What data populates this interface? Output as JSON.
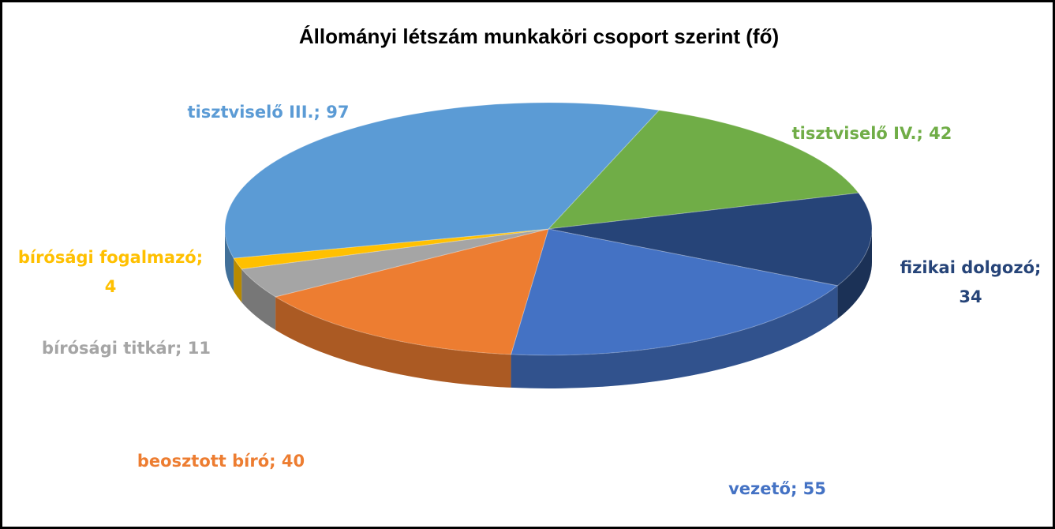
{
  "chart_data": {
    "type": "pie3d",
    "title": "Állományi létszám munkaköri csoport szerint (fő)",
    "categories": [
      "tisztviselő IV.",
      "fizikai dolgozó",
      "vezető",
      "beosztott bíró",
      "bírósági titkár",
      "bírósági fogalmazó",
      "tisztviselő III."
    ],
    "values": [
      42,
      34,
      55,
      40,
      11,
      4,
      97
    ],
    "value_labels": [
      [
        "tisztviselő IV.; 42"
      ],
      [
        "fizikai dolgozó;",
        "34"
      ],
      [
        "vezető; 55"
      ],
      [
        "beosztott bíró; 40"
      ],
      [
        "bírósági titkár; 11"
      ],
      [
        "bírósági fogalmazó;",
        "4"
      ],
      [
        "tisztviselő III.; 97"
      ]
    ],
    "colors": [
      "#70ad47",
      "#264478",
      "#4472c4",
      "#ed7d31",
      "#a5a5a5",
      "#ffc000",
      "#5b9bd5"
    ],
    "start_angle": 20
  }
}
